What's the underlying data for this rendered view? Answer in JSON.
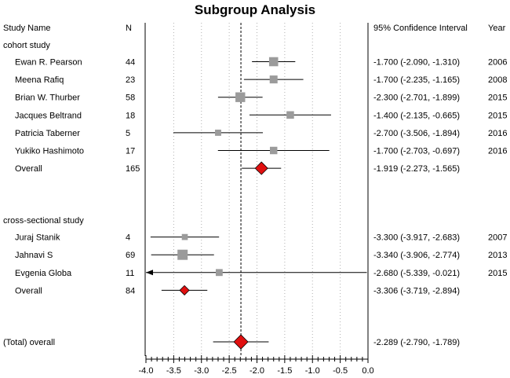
{
  "chart_data": {
    "type": "forest",
    "title": "Subgroup Analysis",
    "headers": {
      "study": "Study Name",
      "n": "N",
      "ci": "95% Confidence Interval",
      "year": "Year"
    },
    "xlim": [
      -4.0,
      0.0
    ],
    "reference_line": -2.289,
    "x_ticks": [
      "-4.0",
      "-3.5",
      "-3.0",
      "-2.5",
      "-2.0",
      "-1.5",
      "-1.0",
      "-0.5",
      "0.0"
    ],
    "groups": [
      {
        "name": "cohort study",
        "studies": [
          {
            "name": "Ewan R. Pearson",
            "n": "44",
            "est": -1.7,
            "lo": -2.09,
            "hi": -1.31,
            "ci_text": "-1.700 (-2.090, -1.310)",
            "year": "2006"
          },
          {
            "name": "Meena Rafiq",
            "n": "23",
            "est": -1.7,
            "lo": -2.235,
            "hi": -1.165,
            "ci_text": "-1.700 (-2.235, -1.165)",
            "year": "2008"
          },
          {
            "name": "Brian W. Thurber",
            "n": "58",
            "est": -2.3,
            "lo": -2.701,
            "hi": -1.899,
            "ci_text": "-2.300 (-2.701, -1.899)",
            "year": "2015"
          },
          {
            "name": "Jacques Beltrand",
            "n": "18",
            "est": -1.4,
            "lo": -2.135,
            "hi": -0.665,
            "ci_text": "-1.400 (-2.135, -0.665)",
            "year": "2015"
          },
          {
            "name": "Patricia Taberner",
            "n": "5",
            "est": -2.7,
            "lo": -3.506,
            "hi": -1.894,
            "ci_text": "-2.700 (-3.506, -1.894)",
            "year": "2016"
          },
          {
            "name": "Yukiko Hashimoto",
            "n": "17",
            "est": -1.7,
            "lo": -2.703,
            "hi": -0.697,
            "ci_text": "-1.700 (-2.703, -0.697)",
            "year": "2016"
          }
        ],
        "overall": {
          "name": "Overall",
          "n": "165",
          "est": -1.919,
          "lo": -2.273,
          "hi": -1.565,
          "ci_text": "-1.919 (-2.273, -1.565)",
          "year": ""
        }
      },
      {
        "name": "cross-sectional study",
        "studies": [
          {
            "name": "Juraj Stanik",
            "n": "4",
            "est": -3.3,
            "lo": -3.917,
            "hi": -2.683,
            "ci_text": "-3.300 (-3.917, -2.683)",
            "year": "2007"
          },
          {
            "name": "Jahnavi S",
            "n": "69",
            "est": -3.34,
            "lo": -3.906,
            "hi": -2.774,
            "ci_text": "-3.340 (-3.906, -2.774)",
            "year": "2013"
          },
          {
            "name": "Evgenia Globa",
            "n": "11",
            "est": -2.68,
            "lo": -5.339,
            "hi": -0.021,
            "ci_text": "-2.680 (-5.339, -0.021)",
            "year": "2015"
          }
        ],
        "overall": {
          "name": "Overall",
          "n": "84",
          "est": -3.306,
          "lo": -3.719,
          "hi": -2.894,
          "ci_text": "-3.306 (-3.719, -2.894)",
          "year": ""
        }
      }
    ],
    "total": {
      "name": "(Total) overall",
      "n": "",
      "est": -2.289,
      "lo": -2.79,
      "hi": -1.789,
      "ci_text": "-2.289 (-2.790, -1.789)",
      "year": ""
    },
    "colors": {
      "marker": "#9b9b9b",
      "diamond": "#e01010",
      "line": "#000000",
      "grid": "#b0b0b0"
    }
  }
}
